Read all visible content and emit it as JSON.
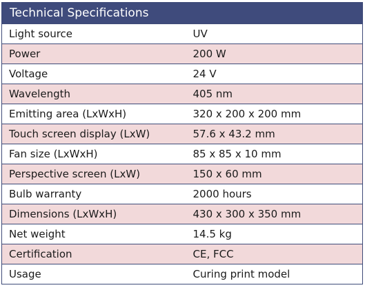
{
  "table": {
    "title": "Technical Specifications",
    "rows": [
      {
        "label": "Light source",
        "value": "UV"
      },
      {
        "label": "Power",
        "value": "200 W"
      },
      {
        "label": "Voltage",
        "value": "24 V"
      },
      {
        "label": "Wavelength",
        "value": "405 nm"
      },
      {
        "label": "Emitting area (LxWxH)",
        "value": "320 x 200 x 200 mm"
      },
      {
        "label": "Touch screen display (LxW)",
        "value": "57.6 x 43.2 mm"
      },
      {
        "label": "Fan size (LxWxH)",
        "value": "85 x 85 x 10 mm"
      },
      {
        "label": "Perspective screen (LxW)",
        "value": "150 x 60 mm"
      },
      {
        "label": "Bulb warranty",
        "value": "2000 hours"
      },
      {
        "label": "Dimensions (LxWxH)",
        "value": "430 x 300 x 350 mm"
      },
      {
        "label": "Net weight",
        "value": "14.5 kg"
      },
      {
        "label": "Certification",
        "value": "CE, FCC"
      },
      {
        "label": "Usage",
        "value": "Curing print model"
      }
    ]
  },
  "colors": {
    "header_bg": "#3f4b7c",
    "header_text": "#ffffff",
    "row_alt_bg": "#f2d9da",
    "row_bg": "#ffffff",
    "border": "#3e4a78"
  }
}
